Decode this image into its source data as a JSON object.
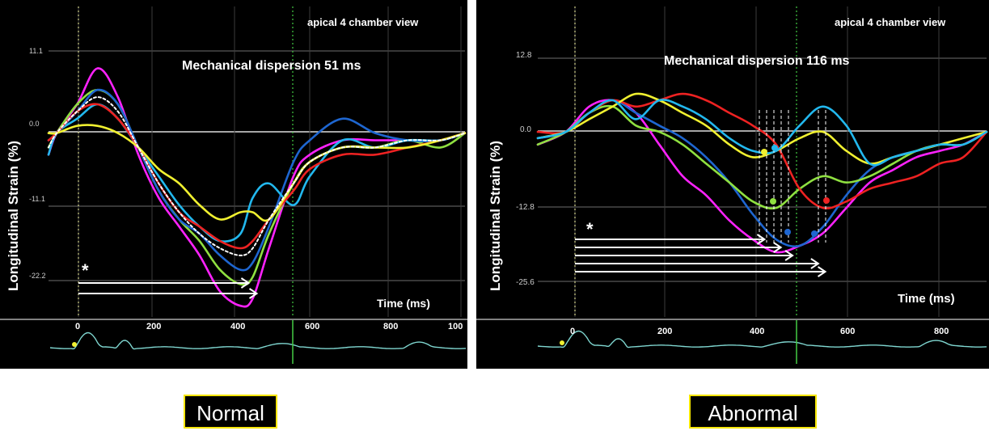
{
  "colors": {
    "background": "#000000",
    "grid": "#6e6e6e",
    "zero_line": "#dddddd",
    "ecg": "#7fd6d0",
    "caption_border": "#f5e600"
  },
  "captions": {
    "left": "Normal",
    "right": "Abnormal"
  },
  "chart_data": [
    {
      "type": "line",
      "title": "Mechanical dispersion 51 ms",
      "view_label": "apical 4 chamber view",
      "ylabel": "Longitudinal Strain (%)",
      "xlabel": "Time (ms)",
      "xlim": [
        -20,
        1000
      ],
      "ylim": [
        -26,
        14
      ],
      "y_ticks": [
        "11.1",
        "0.0",
        "-11.1",
        "-22.2"
      ],
      "x_ticks": [
        "0",
        "200",
        "400",
        "600",
        "800",
        "100"
      ],
      "asterisk": "*",
      "series": [
        {
          "color": "#ff22ff",
          "x": [
            -20,
            0,
            50,
            100,
            150,
            200,
            250,
            300,
            350,
            400,
            450,
            480,
            520,
            580,
            620,
            700,
            780,
            860,
            940,
            1000
          ],
          "y": [
            -3,
            0,
            4,
            9,
            5,
            -3,
            -9,
            -13,
            -17,
            -22,
            -24,
            -23,
            -16,
            -6,
            -3,
            -1,
            -1,
            -1,
            -1,
            0
          ]
        },
        {
          "color": "#8fe040",
          "x": [
            -20,
            0,
            50,
            100,
            150,
            200,
            250,
            300,
            350,
            400,
            450,
            480,
            520,
            580,
            620,
            700,
            780,
            860,
            940,
            1000
          ],
          "y": [
            -2,
            0,
            4,
            6,
            4,
            -2,
            -8,
            -12,
            -15,
            -19,
            -21,
            -20,
            -14,
            -7,
            -4,
            -2,
            -2,
            -1,
            -2,
            0
          ]
        },
        {
          "color": "#1e66d0",
          "x": [
            -20,
            0,
            50,
            100,
            150,
            200,
            250,
            300,
            350,
            400,
            450,
            480,
            520,
            580,
            620,
            700,
            780,
            860,
            940,
            1000
          ],
          "y": [
            -1,
            0,
            3,
            6,
            4,
            -2,
            -8,
            -12,
            -14,
            -17,
            -19,
            -18,
            -13,
            -4,
            -1,
            2,
            0,
            -1,
            -1,
            0
          ]
        },
        {
          "color": "#22b8ee",
          "x": [
            -20,
            0,
            50,
            100,
            150,
            200,
            250,
            300,
            350,
            400,
            450,
            480,
            520,
            580,
            620,
            700,
            780,
            860,
            940,
            1000
          ],
          "y": [
            -3,
            0,
            2,
            4,
            2,
            -2,
            -6,
            -10,
            -13,
            -15,
            -14,
            -9,
            -7,
            -10,
            -6,
            -1,
            -2,
            -1,
            -1,
            0
          ]
        },
        {
          "color": "#ee2222",
          "x": [
            -20,
            0,
            50,
            100,
            150,
            200,
            250,
            300,
            350,
            400,
            450,
            480,
            520,
            580,
            620,
            700,
            780,
            860,
            940,
            1000
          ],
          "y": [
            -1,
            0,
            3,
            4,
            2,
            -2,
            -7,
            -11,
            -13,
            -15,
            -16,
            -15,
            -12,
            -8,
            -5,
            -3,
            -3,
            -2,
            -1,
            0
          ]
        },
        {
          "color": "#f0f030",
          "x": [
            -20,
            0,
            50,
            100,
            150,
            200,
            250,
            300,
            350,
            400,
            450,
            480,
            520,
            580,
            620,
            700,
            780,
            860,
            940,
            1000
          ],
          "y": [
            0,
            0,
            1,
            1,
            0,
            -2,
            -5,
            -7,
            -10,
            -12,
            -11,
            -11,
            -12,
            -7,
            -4,
            -2,
            -2,
            -2,
            -1,
            0
          ]
        },
        {
          "color": "#ffffff",
          "dashed": true,
          "x": [
            -20,
            0,
            50,
            100,
            150,
            200,
            250,
            300,
            350,
            400,
            450,
            480,
            520,
            580,
            620,
            700,
            780,
            860,
            940,
            1000
          ],
          "y": [
            -2,
            0,
            3,
            5,
            3,
            -2,
            -7,
            -11,
            -14,
            -16,
            -17,
            -16,
            -12,
            -7,
            -4,
            -2,
            -2,
            -1,
            -1,
            0
          ]
        }
      ],
      "arrows_end_ms": [
        470,
        490
      ]
    },
    {
      "type": "line",
      "title": "Mechanical dispersion 116 ms",
      "view_label": "apical 4 chamber view",
      "ylabel": "Longitudinal Strain (%)",
      "xlabel": "Time (ms)",
      "xlim": [
        -60,
        900
      ],
      "ylim": [
        -30,
        17
      ],
      "y_ticks": [
        "12.8",
        "0.0",
        "-12.8",
        "-25.6"
      ],
      "x_ticks": [
        "0",
        "200",
        "400",
        "600",
        "800"
      ],
      "asterisk": "*",
      "series": [
        {
          "color": "#ff22ff",
          "x": [
            -60,
            0,
            50,
            100,
            150,
            200,
            250,
            300,
            350,
            400,
            450,
            500,
            550,
            600,
            650,
            700,
            750,
            800,
            850,
            900
          ],
          "y": [
            -2,
            0,
            4,
            5,
            3,
            -2,
            -7,
            -10,
            -14,
            -17,
            -19,
            -18,
            -16,
            -12,
            -8,
            -6,
            -4,
            -3,
            -2,
            0
          ]
        },
        {
          "color": "#1e66d0",
          "x": [
            -60,
            0,
            50,
            100,
            150,
            200,
            250,
            300,
            350,
            400,
            450,
            500,
            550,
            600,
            650,
            700,
            750,
            800,
            850,
            900
          ],
          "y": [
            -1,
            0,
            3,
            5,
            3,
            1,
            -1,
            -4,
            -8,
            -13,
            -17,
            -18,
            -15,
            -10,
            -6,
            -4,
            -3,
            -2,
            -2,
            0
          ]
        },
        {
          "color": "#8fe040",
          "x": [
            -60,
            0,
            50,
            100,
            150,
            200,
            250,
            300,
            350,
            400,
            450,
            500,
            550,
            600,
            650,
            700,
            750,
            800,
            850,
            900
          ],
          "y": [
            -2,
            0,
            3,
            4,
            1,
            0,
            -2,
            -5,
            -8,
            -11,
            -12,
            -9,
            -7,
            -8,
            -7,
            -5,
            -3,
            -2,
            -2,
            0
          ]
        },
        {
          "color": "#ee2222",
          "x": [
            -60,
            0,
            50,
            100,
            150,
            200,
            250,
            300,
            350,
            400,
            450,
            500,
            550,
            600,
            650,
            700,
            750,
            800,
            850,
            900
          ],
          "y": [
            0,
            0,
            3,
            5,
            4,
            5,
            6,
            5,
            3,
            1,
            -2,
            -9,
            -12,
            -11,
            -9,
            -8,
            -7,
            -5,
            -4,
            0
          ]
        },
        {
          "color": "#f0f030",
          "x": [
            -60,
            0,
            50,
            100,
            150,
            200,
            250,
            300,
            350,
            400,
            450,
            500,
            550,
            600,
            650,
            700,
            750,
            800,
            850,
            900
          ],
          "y": [
            -1,
            0,
            2,
            4,
            6,
            5,
            3,
            1,
            -2,
            -4,
            -3,
            -1,
            0,
            -3,
            -5,
            -4,
            -3,
            -2,
            -1,
            0
          ]
        },
        {
          "color": "#22b8ee",
          "x": [
            -60,
            0,
            50,
            100,
            150,
            200,
            250,
            300,
            350,
            400,
            450,
            500,
            550,
            600,
            650,
            700,
            750,
            800,
            850,
            900
          ],
          "y": [
            -1,
            0,
            3,
            5,
            2,
            5,
            4,
            2,
            -1,
            -3,
            -3,
            1,
            4,
            1,
            -5,
            -4,
            -3,
            -2,
            -2,
            0
          ]
        }
      ],
      "arrows_end_ms": [
        425,
        460,
        485,
        540,
        555
      ]
    }
  ]
}
